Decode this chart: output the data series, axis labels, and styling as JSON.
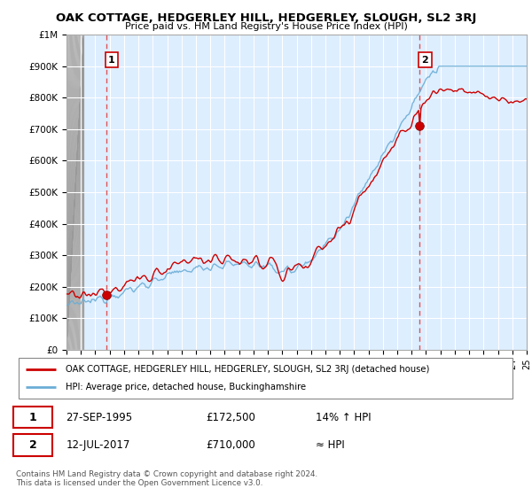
{
  "title": "OAK COTTAGE, HEDGERLEY HILL, HEDGERLEY, SLOUGH, SL2 3RJ",
  "subtitle": "Price paid vs. HM Land Registry's House Price Index (HPI)",
  "ylim": [
    0,
    1000000
  ],
  "yticks": [
    0,
    100000,
    200000,
    300000,
    400000,
    500000,
    600000,
    700000,
    800000,
    900000,
    1000000
  ],
  "ytick_labels": [
    "£0",
    "£100K",
    "£200K",
    "£300K",
    "£400K",
    "£500K",
    "£600K",
    "£700K",
    "£800K",
    "£900K",
    "£1M"
  ],
  "plot_bg_color": "#ddeeff",
  "hatch_bg_color": "#cccccc",
  "grid_color": "#ffffff",
  "hpi_color": "#6baed6",
  "price_color": "#cc0000",
  "marker_color": "#cc0000",
  "vline_color": "#dd4444",
  "sale1_year": 1995.75,
  "sale1_price": 172500,
  "sale2_year": 2017.54,
  "sale2_price": 710000,
  "sale1_date": "27-SEP-1995",
  "sale1_amount": "£172,500",
  "sale1_hpi": "14% ↑ HPI",
  "sale2_date": "12-JUL-2017",
  "sale2_amount": "£710,000",
  "sale2_hpi": "≈ HPI",
  "legend_line1": "OAK COTTAGE, HEDGERLEY HILL, HEDGERLEY, SLOUGH, SL2 3RJ (detached house)",
  "legend_line2": "HPI: Average price, detached house, Buckinghamshire",
  "footer": "Contains HM Land Registry data © Crown copyright and database right 2024.\nThis data is licensed under the Open Government Licence v3.0.",
  "xmin": 1993,
  "xmax": 2025
}
